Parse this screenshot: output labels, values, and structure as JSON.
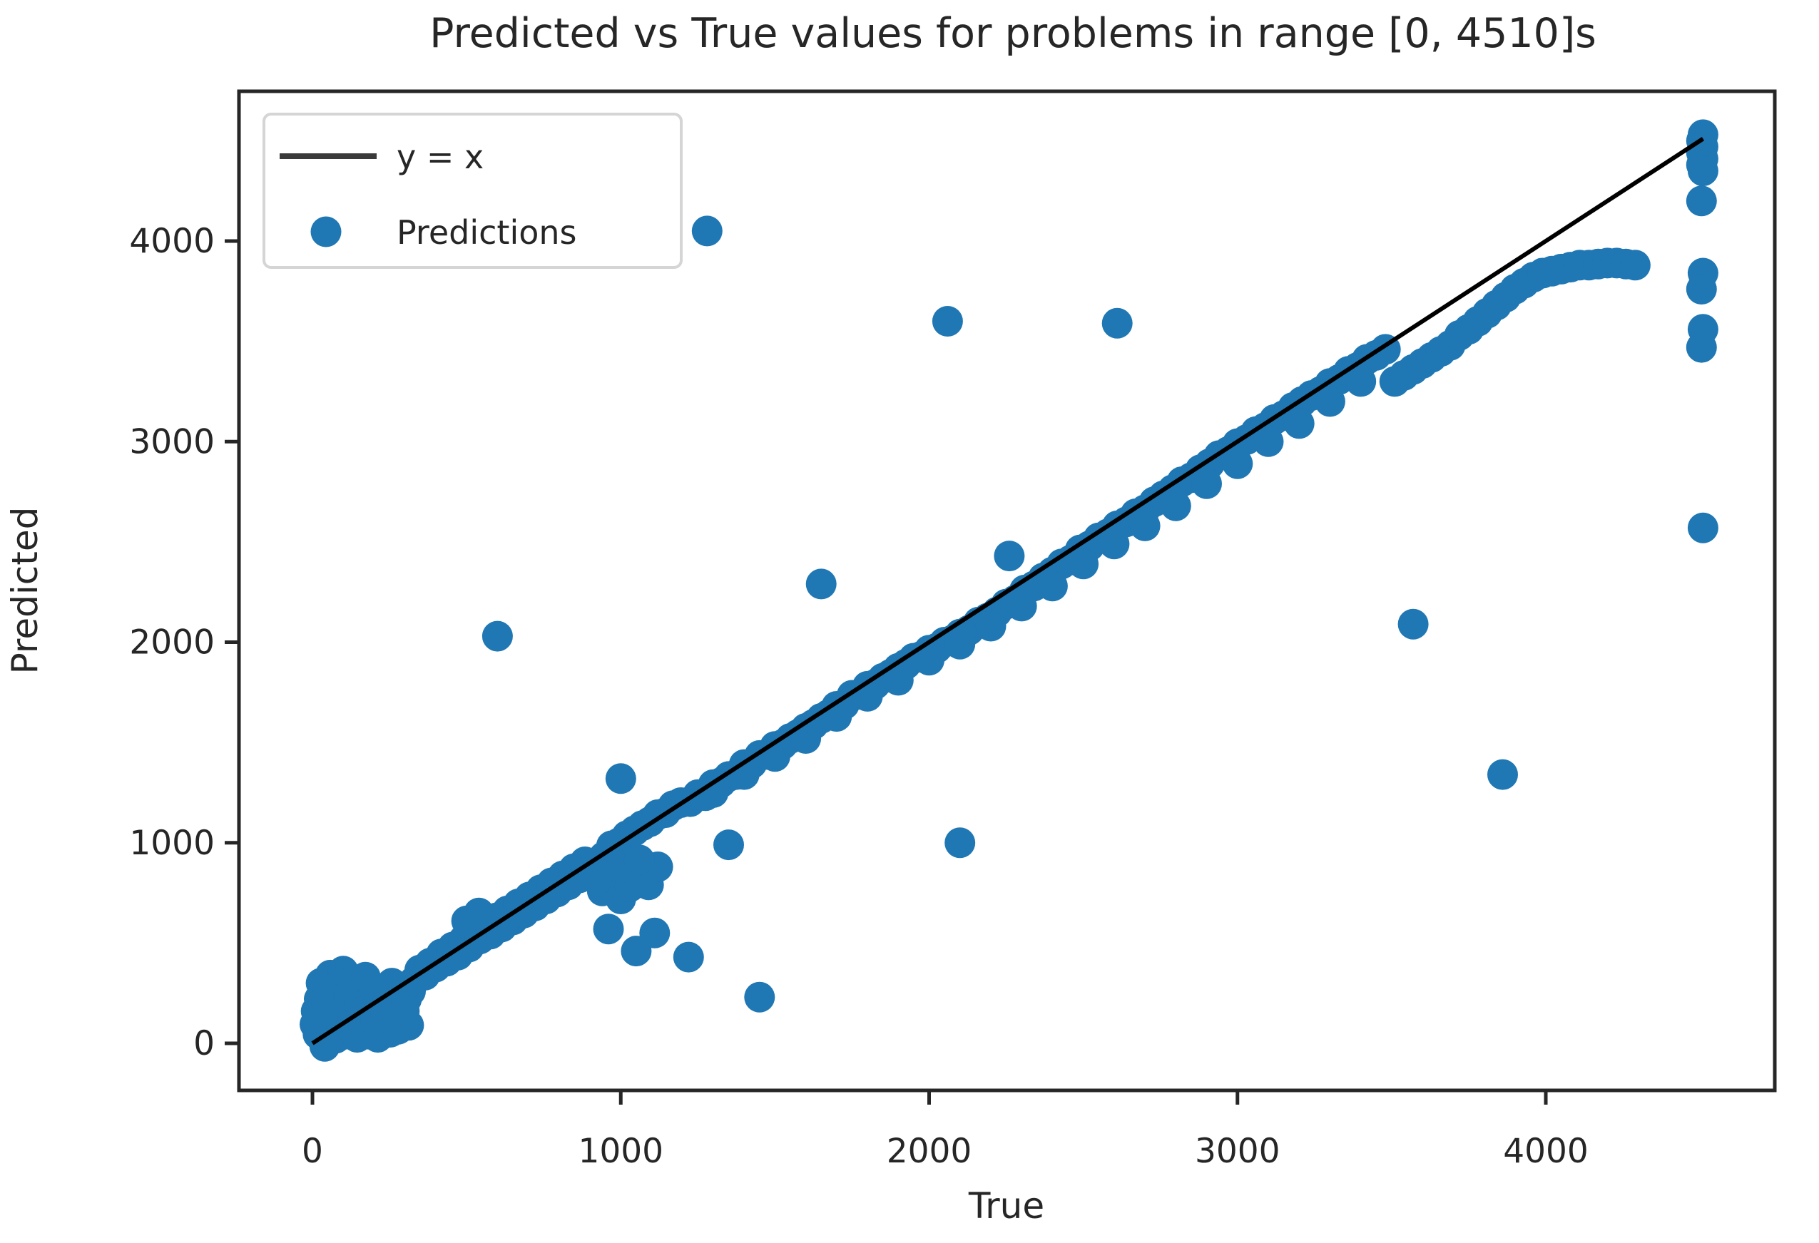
{
  "title": "Predicted vs True values for problems in range [0, 4510]s",
  "axes": {
    "xlabel": "True",
    "ylabel": "Predicted",
    "x_tick_labels": [
      "0",
      "1000",
      "2000",
      "3000",
      "4000"
    ],
    "x_tick_values": [
      0,
      1000,
      2000,
      3000,
      4000
    ],
    "y_tick_labels": [
      "0",
      "1000",
      "2000",
      "3000",
      "4000"
    ],
    "y_tick_values": [
      0,
      1000,
      2000,
      3000,
      4000
    ]
  },
  "legend": {
    "line_label": "y = x",
    "scatter_label": "Predictions",
    "position": "upper left"
  },
  "colors": {
    "marker": "#1f77b4",
    "identity_line": "#000000",
    "legend_line": "#3a3a3a",
    "spine": "#262626",
    "text": "#262626",
    "legend_border": "#d5d5d5",
    "background": "#ffffff"
  },
  "chart_data": {
    "type": "scatter",
    "title": "Predicted vs True values for problems in range [0, 4510]s",
    "xlabel": "True",
    "ylabel": "Predicted",
    "xlim": [
      -225,
      4735
    ],
    "ylim": [
      -225,
      4735
    ],
    "grid": false,
    "legend_position": "upper left",
    "identity_line": {
      "label": "y = x",
      "from": [
        0,
        0
      ],
      "to": [
        4510,
        4510
      ]
    },
    "series": [
      {
        "name": "Predictions",
        "marker": "circle",
        "color": "#1f77b4",
        "points": [
          [
            8,
            95
          ],
          [
            12,
            160
          ],
          [
            18,
            45
          ],
          [
            22,
            220
          ],
          [
            28,
            300
          ],
          [
            35,
            130
          ],
          [
            40,
            -15
          ],
          [
            45,
            200
          ],
          [
            52,
            260
          ],
          [
            58,
            340
          ],
          [
            60,
            75
          ],
          [
            68,
            150
          ],
          [
            75,
            25
          ],
          [
            82,
            230
          ],
          [
            88,
            290
          ],
          [
            95,
            110
          ],
          [
            100,
            360
          ],
          [
            105,
            45
          ],
          [
            112,
            175
          ],
          [
            118,
            250
          ],
          [
            125,
            80
          ],
          [
            130,
            310
          ],
          [
            138,
            140
          ],
          [
            145,
            30
          ],
          [
            152,
            200
          ],
          [
            158,
            260
          ],
          [
            165,
            95
          ],
          [
            172,
            330
          ],
          [
            178,
            160
          ],
          [
            185,
            45
          ],
          [
            192,
            225
          ],
          [
            198,
            280
          ],
          [
            205,
            120
          ],
          [
            212,
            30
          ],
          [
            218,
            190
          ],
          [
            225,
            250
          ],
          [
            232,
            85
          ],
          [
            238,
            150
          ],
          [
            245,
            210
          ],
          [
            252,
            55
          ],
          [
            258,
            300
          ],
          [
            265,
            130
          ],
          [
            272,
            180
          ],
          [
            278,
            70
          ],
          [
            285,
            240
          ],
          [
            292,
            110
          ],
          [
            298,
            160
          ],
          [
            305,
            220
          ],
          [
            312,
            90
          ],
          [
            318,
            260
          ],
          [
            330,
            310
          ],
          [
            348,
            365
          ],
          [
            365,
            340
          ],
          [
            382,
            400
          ],
          [
            400,
            380
          ],
          [
            418,
            445
          ],
          [
            436,
            410
          ],
          [
            455,
            480
          ],
          [
            472,
            440
          ],
          [
            490,
            515
          ],
          [
            500,
            610
          ],
          [
            508,
            480
          ],
          [
            525,
            560
          ],
          [
            540,
            650
          ],
          [
            543,
            520
          ],
          [
            560,
            595
          ],
          [
            578,
            545
          ],
          [
            596,
            625
          ],
          [
            614,
            580
          ],
          [
            632,
            660
          ],
          [
            650,
            615
          ],
          [
            668,
            695
          ],
          [
            686,
            650
          ],
          [
            704,
            730
          ],
          [
            722,
            685
          ],
          [
            740,
            765
          ],
          [
            758,
            720
          ],
          [
            776,
            800
          ],
          [
            794,
            755
          ],
          [
            812,
            835
          ],
          [
            830,
            790
          ],
          [
            848,
            870
          ],
          [
            866,
            825
          ],
          [
            884,
            905
          ],
          [
            900,
            860
          ],
          [
            920,
            900
          ],
          [
            945,
            930
          ],
          [
            970,
            985
          ],
          [
            995,
            1000
          ],
          [
            1020,
            1035
          ],
          [
            1045,
            1060
          ],
          [
            1070,
            1085
          ],
          [
            1095,
            1105
          ],
          [
            1120,
            1140
          ],
          [
            1145,
            1150
          ],
          [
            1170,
            1185
          ],
          [
            1195,
            1200
          ],
          [
            940,
            760
          ],
          [
            970,
            820
          ],
          [
            1000,
            720
          ],
          [
            1030,
            780
          ],
          [
            1060,
            850
          ],
          [
            1090,
            790
          ],
          [
            1120,
            880
          ],
          [
            1000,
            875
          ],
          [
            1060,
            915
          ],
          [
            960,
            570
          ],
          [
            1050,
            460
          ],
          [
            1110,
            550
          ],
          [
            1220,
            430
          ],
          [
            1450,
            230
          ],
          [
            1350,
            990
          ],
          [
            1000,
            1320
          ],
          [
            1225,
            1205
          ],
          [
            1250,
            1240
          ],
          [
            1275,
            1235
          ],
          [
            1300,
            1290
          ],
          [
            1325,
            1300
          ],
          [
            1350,
            1330
          ],
          [
            1375,
            1340
          ],
          [
            1400,
            1390
          ],
          [
            1425,
            1395
          ],
          [
            1450,
            1435
          ],
          [
            1475,
            1440
          ],
          [
            1500,
            1480
          ],
          [
            1525,
            1490
          ],
          [
            1550,
            1520
          ],
          [
            1575,
            1540
          ],
          [
            1600,
            1570
          ],
          [
            1625,
            1590
          ],
          [
            1650,
            1620
          ],
          [
            1675,
            1640
          ],
          [
            1700,
            1680
          ],
          [
            1725,
            1690
          ],
          [
            1750,
            1735
          ],
          [
            1775,
            1740
          ],
          [
            1800,
            1780
          ],
          [
            1825,
            1790
          ],
          [
            1850,
            1820
          ],
          [
            1875,
            1840
          ],
          [
            1900,
            1870
          ],
          [
            1925,
            1890
          ],
          [
            1950,
            1920
          ],
          [
            1975,
            1930
          ],
          [
            2000,
            1960
          ],
          [
            2025,
            1970
          ],
          [
            2050,
            2000
          ],
          [
            2075,
            2010
          ],
          [
            2100,
            2040
          ],
          [
            1300,
            1250
          ],
          [
            1400,
            1340
          ],
          [
            1500,
            1430
          ],
          [
            1600,
            1520
          ],
          [
            1700,
            1630
          ],
          [
            1800,
            1730
          ],
          [
            1900,
            1810
          ],
          [
            2000,
            1910
          ],
          [
            2100,
            1990
          ],
          [
            1280,
            4050
          ],
          [
            1650,
            2290
          ],
          [
            2060,
            3600
          ],
          [
            2100,
            1000
          ],
          [
            600,
            2030
          ],
          [
            2260,
            2430
          ],
          [
            2610,
            3590
          ],
          [
            2130,
            2060
          ],
          [
            2160,
            2100
          ],
          [
            2190,
            2120
          ],
          [
            2220,
            2150
          ],
          [
            2250,
            2190
          ],
          [
            2280,
            2210
          ],
          [
            2310,
            2260
          ],
          [
            2340,
            2280
          ],
          [
            2370,
            2320
          ],
          [
            2400,
            2350
          ],
          [
            2430,
            2390
          ],
          [
            2460,
            2410
          ],
          [
            2490,
            2460
          ],
          [
            2520,
            2480
          ],
          [
            2550,
            2520
          ],
          [
            2580,
            2540
          ],
          [
            2610,
            2580
          ],
          [
            2200,
            2080
          ],
          [
            2300,
            2180
          ],
          [
            2400,
            2280
          ],
          [
            2500,
            2390
          ],
          [
            2600,
            2490
          ],
          [
            2640,
            2600
          ],
          [
            2670,
            2640
          ],
          [
            2700,
            2660
          ],
          [
            2730,
            2700
          ],
          [
            2760,
            2730
          ],
          [
            2790,
            2760
          ],
          [
            2820,
            2800
          ],
          [
            2850,
            2820
          ],
          [
            2880,
            2860
          ],
          [
            2910,
            2890
          ],
          [
            2940,
            2930
          ],
          [
            2970,
            2950
          ],
          [
            3000,
            2990
          ],
          [
            3030,
            3010
          ],
          [
            3060,
            3050
          ],
          [
            3090,
            3070
          ],
          [
            3120,
            3110
          ],
          [
            3150,
            3130
          ],
          [
            3180,
            3170
          ],
          [
            3210,
            3200
          ],
          [
            3240,
            3230
          ],
          [
            3270,
            3250
          ],
          [
            3300,
            3290
          ],
          [
            3330,
            3310
          ],
          [
            3360,
            3350
          ],
          [
            3390,
            3370
          ],
          [
            3420,
            3410
          ],
          [
            3450,
            3430
          ],
          [
            3480,
            3460
          ],
          [
            2700,
            2580
          ],
          [
            2800,
            2680
          ],
          [
            2900,
            2790
          ],
          [
            3000,
            2890
          ],
          [
            3100,
            3000
          ],
          [
            3200,
            3090
          ],
          [
            3300,
            3200
          ],
          [
            3400,
            3300
          ],
          [
            3570,
            2090
          ],
          [
            3860,
            1340
          ],
          [
            3510,
            3300
          ],
          [
            3540,
            3330
          ],
          [
            3570,
            3360
          ],
          [
            3600,
            3390
          ],
          [
            3630,
            3420
          ],
          [
            3660,
            3450
          ],
          [
            3690,
            3480
          ],
          [
            3720,
            3530
          ],
          [
            3750,
            3560
          ],
          [
            3780,
            3600
          ],
          [
            3810,
            3640
          ],
          [
            3840,
            3680
          ],
          [
            3870,
            3720
          ],
          [
            3900,
            3760
          ],
          [
            3930,
            3790
          ],
          [
            3960,
            3820
          ],
          [
            3990,
            3840
          ],
          [
            4020,
            3850
          ],
          [
            4050,
            3860
          ],
          [
            4080,
            3870
          ],
          [
            4110,
            3880
          ],
          [
            4140,
            3880
          ],
          [
            4170,
            3885
          ],
          [
            4200,
            3890
          ],
          [
            4230,
            3890
          ],
          [
            4260,
            3885
          ],
          [
            4290,
            3880
          ],
          [
            4510,
            4530
          ],
          [
            4505,
            4500
          ],
          [
            4510,
            4470
          ],
          [
            4505,
            4440
          ],
          [
            4510,
            4410
          ],
          [
            4505,
            4380
          ],
          [
            4510,
            4350
          ],
          [
            4505,
            4200
          ],
          [
            4510,
            3840
          ],
          [
            4505,
            3760
          ],
          [
            4510,
            3560
          ],
          [
            4505,
            3470
          ],
          [
            4510,
            2570
          ]
        ]
      }
    ]
  }
}
